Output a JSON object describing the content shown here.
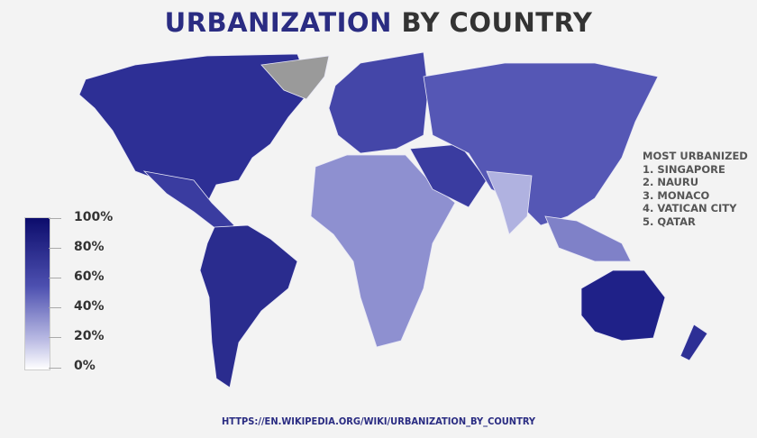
{
  "title": {
    "highlight": "URBANIZATION",
    "rest": " BY COUNTRY"
  },
  "legend": {
    "labels": [
      "100%",
      "80%",
      "60%",
      "40%",
      "20%",
      "0%"
    ],
    "min_color": "#ffffff",
    "max_color": "#0c0c6c",
    "no_data_color": "#9a9a9a"
  },
  "most_urbanized": {
    "heading": "MOST URBANIZED",
    "items": [
      "1. SINGAPORE",
      "2. NAURU",
      "3. MONACO",
      "4. VATICAN CITY",
      "5. QATAR"
    ]
  },
  "source_url": "HTTPS://EN.WIKIPEDIA.ORG/WIKI/URBANIZATION_BY_COUNTRY"
}
